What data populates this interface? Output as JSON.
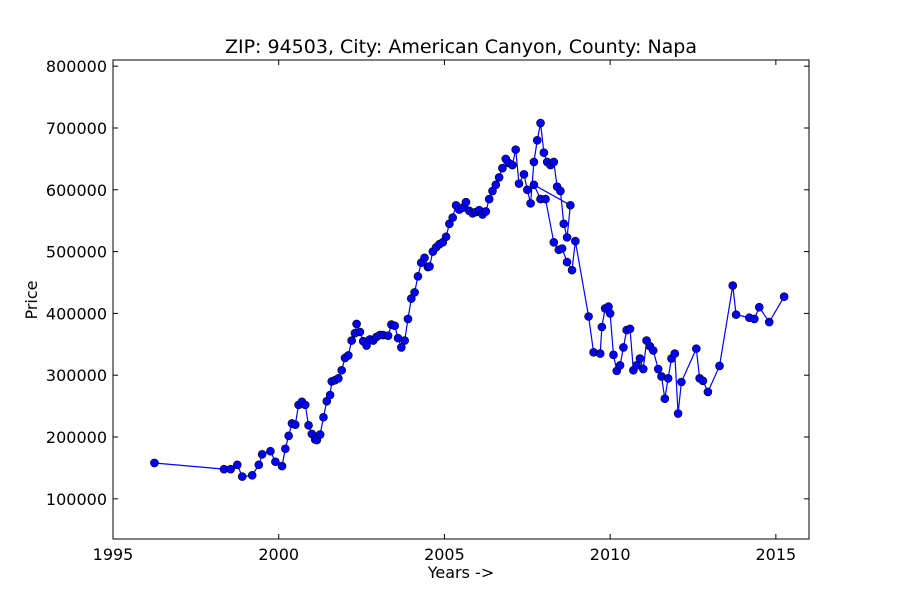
{
  "chart_data": {
    "type": "line",
    "title": "ZIP: 94503, City: American Canyon, County: Napa",
    "xlabel": "Years ->",
    "ylabel": "Price",
    "xlim": [
      1995,
      2016
    ],
    "ylim": [
      35000,
      810000
    ],
    "xticks": [
      1995,
      2000,
      2005,
      2010,
      2015
    ],
    "yticks": [
      100000,
      200000,
      300000,
      400000,
      500000,
      600000,
      700000,
      800000
    ],
    "grid": false,
    "line_color": "#0000ff",
    "marker_color": "#0000ff",
    "series": [
      {
        "points": [
          [
            1996.25,
            158000
          ],
          [
            1998.35,
            148000
          ],
          [
            1998.55,
            148000
          ],
          [
            1998.75,
            155000
          ],
          [
            1998.9,
            136000
          ],
          [
            1999.2,
            138000
          ],
          [
            1999.4,
            155000
          ],
          [
            1999.5,
            172000
          ],
          [
            1999.75,
            177000
          ],
          [
            1999.9,
            160000
          ],
          [
            2000.1,
            153000
          ],
          [
            2000.2,
            181000
          ],
          [
            2000.3,
            202000
          ],
          [
            2000.4,
            222000
          ],
          [
            2000.5,
            220000
          ],
          [
            2000.6,
            252000
          ],
          [
            2000.7,
            257000
          ],
          [
            2000.8,
            252000
          ],
          [
            2000.9,
            219000
          ],
          [
            2001.0,
            205000
          ],
          [
            2001.1,
            196000
          ],
          [
            2001.15,
            195000
          ],
          [
            2001.25,
            204000
          ],
          [
            2001.35,
            232000
          ],
          [
            2001.45,
            258000
          ],
          [
            2001.55,
            268000
          ],
          [
            2001.6,
            290000
          ],
          [
            2001.7,
            292000
          ],
          [
            2001.8,
            295000
          ],
          [
            2001.9,
            308000
          ],
          [
            2002.0,
            328000
          ],
          [
            2002.1,
            332000
          ],
          [
            2002.2,
            356000
          ],
          [
            2002.3,
            368000
          ],
          [
            2002.35,
            383000
          ],
          [
            2002.45,
            370000
          ],
          [
            2002.55,
            355000
          ],
          [
            2002.65,
            348000
          ],
          [
            2002.75,
            358000
          ],
          [
            2002.85,
            356000
          ],
          [
            2002.95,
            362000
          ],
          [
            2003.05,
            365000
          ],
          [
            2003.15,
            365000
          ],
          [
            2003.3,
            364000
          ],
          [
            2003.4,
            382000
          ],
          [
            2003.5,
            380000
          ],
          [
            2003.6,
            360000
          ],
          [
            2003.7,
            345000
          ],
          [
            2003.8,
            356000
          ],
          [
            2003.9,
            391000
          ],
          [
            2004.0,
            424000
          ],
          [
            2004.1,
            434000
          ],
          [
            2004.2,
            460000
          ],
          [
            2004.3,
            482000
          ],
          [
            2004.4,
            490000
          ],
          [
            2004.5,
            475000
          ],
          [
            2004.55,
            476000
          ],
          [
            2004.65,
            500000
          ],
          [
            2004.75,
            507000
          ],
          [
            2004.85,
            512000
          ],
          [
            2004.95,
            515000
          ],
          [
            2005.05,
            524000
          ],
          [
            2005.15,
            545000
          ],
          [
            2005.25,
            555000
          ],
          [
            2005.35,
            575000
          ],
          [
            2005.45,
            568000
          ],
          [
            2005.55,
            571000
          ],
          [
            2005.65,
            580000
          ],
          [
            2005.75,
            566000
          ],
          [
            2005.85,
            562000
          ],
          [
            2005.95,
            564000
          ],
          [
            2006.05,
            567000
          ],
          [
            2006.15,
            560000
          ],
          [
            2006.25,
            565000
          ],
          [
            2006.35,
            585000
          ],
          [
            2006.45,
            598000
          ],
          [
            2006.55,
            608000
          ],
          [
            2006.65,
            620000
          ],
          [
            2006.75,
            635000
          ],
          [
            2006.85,
            650000
          ],
          [
            2006.95,
            643000
          ],
          [
            2007.05,
            640000
          ],
          [
            2007.15,
            665000
          ],
          [
            2007.25,
            610000
          ],
          [
            2007.4,
            625000
          ],
          [
            2007.5,
            600000
          ],
          [
            2007.6,
            578000
          ],
          [
            2007.7,
            645000
          ],
          [
            2007.8,
            680000
          ],
          [
            2007.9,
            708000
          ],
          [
            2008.0,
            660000
          ],
          [
            2008.1,
            645000
          ],
          [
            2008.2,
            640000
          ],
          [
            2008.3,
            645000
          ],
          [
            2008.4,
            605000
          ],
          [
            2008.5,
            598000
          ],
          [
            2008.6,
            545000
          ],
          [
            2008.7,
            523000
          ],
          [
            2008.8,
            575000
          ],
          [
            2007.7,
            608000
          ],
          [
            2007.9,
            585000
          ],
          [
            2008.05,
            585000
          ],
          [
            2008.3,
            515000
          ],
          [
            2008.45,
            503000
          ],
          [
            2008.55,
            505000
          ],
          [
            2008.7,
            483000
          ],
          [
            2008.85,
            470000
          ],
          [
            2008.95,
            517000
          ],
          [
            2009.35,
            395000
          ],
          [
            2009.5,
            337000
          ],
          [
            2009.7,
            335000
          ],
          [
            2009.75,
            378000
          ],
          [
            2009.85,
            408000
          ],
          [
            2009.95,
            411000
          ],
          [
            2010.0,
            400000
          ],
          [
            2010.1,
            333000
          ],
          [
            2010.2,
            307000
          ],
          [
            2010.3,
            316000
          ],
          [
            2010.4,
            345000
          ],
          [
            2010.5,
            373000
          ],
          [
            2010.6,
            375000
          ],
          [
            2010.7,
            308000
          ],
          [
            2010.8,
            316000
          ],
          [
            2010.9,
            327000
          ],
          [
            2011.0,
            310000
          ],
          [
            2011.1,
            356000
          ],
          [
            2011.2,
            347000
          ],
          [
            2011.3,
            340000
          ],
          [
            2011.45,
            310000
          ],
          [
            2011.55,
            298000
          ],
          [
            2011.65,
            262000
          ],
          [
            2011.75,
            295000
          ],
          [
            2011.85,
            327000
          ],
          [
            2011.95,
            335000
          ],
          [
            2012.05,
            238000
          ],
          [
            2012.15,
            289000
          ],
          [
            2012.6,
            343000
          ],
          [
            2012.7,
            295000
          ],
          [
            2012.8,
            291000
          ],
          [
            2012.95,
            273000
          ],
          [
            2013.3,
            315000
          ],
          [
            2013.7,
            445000
          ],
          [
            2013.8,
            398000
          ],
          [
            2014.2,
            393000
          ],
          [
            2014.35,
            391000
          ],
          [
            2014.5,
            410000
          ],
          [
            2014.8,
            386000
          ],
          [
            2015.25,
            427000
          ]
        ]
      }
    ]
  }
}
